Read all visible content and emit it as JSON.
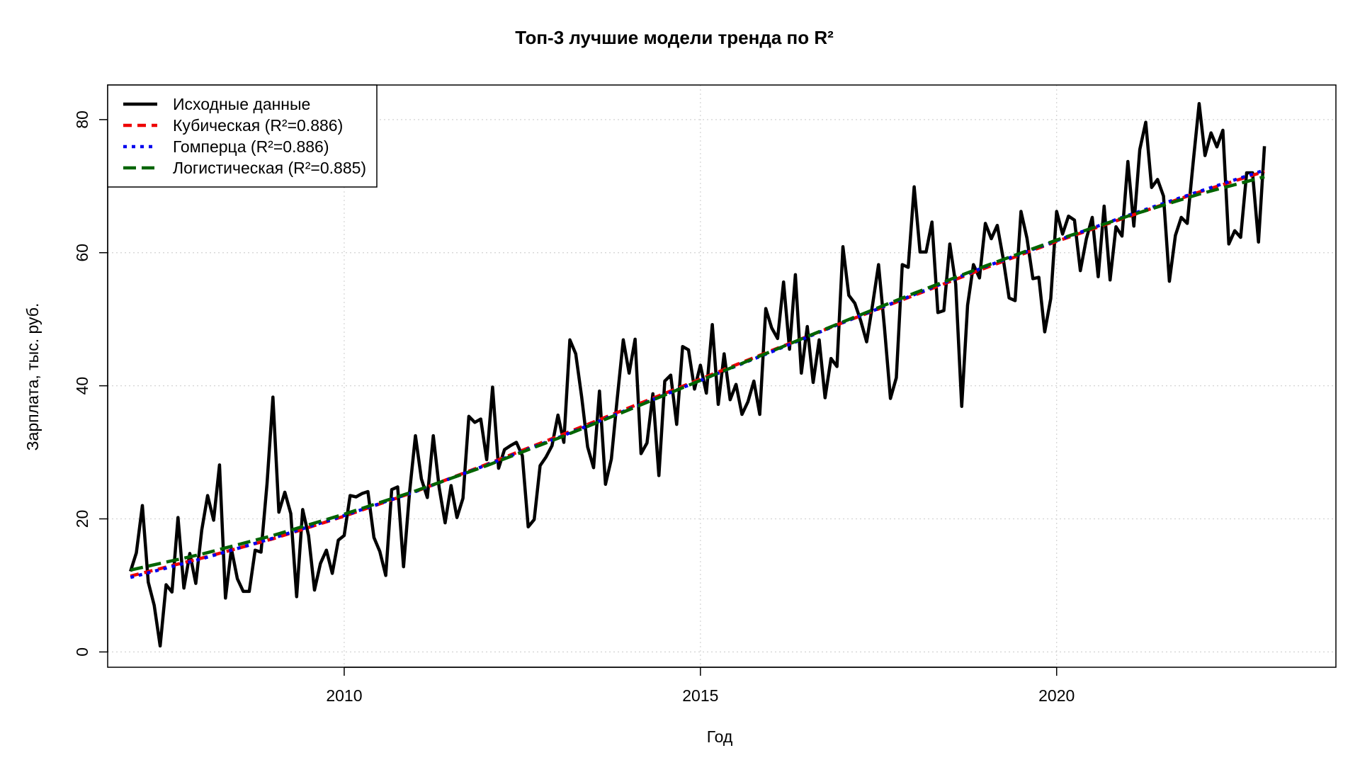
{
  "chart_data": {
    "type": "line",
    "title": "Топ-3 лучшие модели тренда по R²",
    "xlabel": "Год",
    "ylabel": "Зарплата, тыс. руб.",
    "xlim": [
      2006.68,
      2023.92
    ],
    "ylim": [
      -2.3,
      85.2
    ],
    "xticks": [
      2010,
      2015,
      2020
    ],
    "yticks": [
      0,
      20,
      40,
      60,
      80
    ],
    "grid": true,
    "legend_position": "top-left",
    "series": [
      {
        "name": "Исходные данные",
        "color": "#000000",
        "dash": "solid",
        "x": [
          2007.0,
          2007.083,
          2007.167,
          2007.25,
          2007.333,
          2007.417,
          2007.5,
          2007.583,
          2007.667,
          2007.75,
          2007.833,
          2007.917,
          2008.0,
          2008.083,
          2008.167,
          2008.25,
          2008.333,
          2008.417,
          2008.5,
          2008.583,
          2008.667,
          2008.75,
          2008.833,
          2008.917,
          2009.0,
          2009.083,
          2009.167,
          2009.25,
          2009.333,
          2009.417,
          2009.5,
          2009.583,
          2009.667,
          2009.75,
          2009.833,
          2009.917,
          2010.0,
          2010.083,
          2010.167,
          2010.25,
          2010.333,
          2010.417,
          2010.5,
          2010.583,
          2010.667,
          2010.75,
          2010.833,
          2010.917,
          2011.0,
          2011.083,
          2011.167,
          2011.25,
          2011.333,
          2011.417,
          2011.5,
          2011.583,
          2011.667,
          2011.75,
          2011.833,
          2011.917,
          2012.0,
          2012.083,
          2012.167,
          2012.25,
          2012.333,
          2012.417,
          2012.5,
          2012.583,
          2012.667,
          2012.75,
          2012.833,
          2012.917,
          2013.0,
          2013.083,
          2013.167,
          2013.25,
          2013.333,
          2013.417,
          2013.5,
          2013.583,
          2013.667,
          2013.75,
          2013.833,
          2013.917,
          2014.0,
          2014.083,
          2014.167,
          2014.25,
          2014.333,
          2014.417,
          2014.5,
          2014.583,
          2014.667,
          2014.75,
          2014.833,
          2014.917,
          2015.0,
          2015.083,
          2015.167,
          2015.25,
          2015.333,
          2015.417,
          2015.5,
          2015.583,
          2015.667,
          2015.75,
          2015.833,
          2015.917,
          2016.0,
          2016.083,
          2016.167,
          2016.25,
          2016.333,
          2016.417,
          2016.5,
          2016.583,
          2016.667,
          2016.75,
          2016.833,
          2016.917,
          2017.0,
          2017.083,
          2017.167,
          2017.25,
          2017.333,
          2017.417,
          2017.5,
          2017.583,
          2017.667,
          2017.75,
          2017.833,
          2017.917,
          2018.0,
          2018.083,
          2018.167,
          2018.25,
          2018.333,
          2018.417,
          2018.5,
          2018.583,
          2018.667,
          2018.75,
          2018.833,
          2018.917,
          2019.0,
          2019.083,
          2019.167,
          2019.25,
          2019.333,
          2019.417,
          2019.5,
          2019.583,
          2019.667,
          2019.75,
          2019.833,
          2019.917,
          2020.0,
          2020.083,
          2020.167,
          2020.25,
          2020.333,
          2020.417,
          2020.5,
          2020.583,
          2020.667,
          2020.75,
          2020.833,
          2020.917,
          2021.0,
          2021.083,
          2021.167,
          2021.25,
          2021.333,
          2021.417,
          2021.5,
          2021.583,
          2021.667,
          2021.75,
          2021.833,
          2021.917,
          2022.0,
          2022.083,
          2022.167,
          2022.25,
          2022.333,
          2022.417,
          2022.5,
          2022.583,
          2022.667,
          2022.75,
          2022.833,
          2022.917
        ],
        "y": [
          12.1,
          14.9,
          22.0,
          10.5,
          7.0,
          0.9,
          10.1,
          9.0,
          20.2,
          9.6,
          14.8,
          10.3,
          18.3,
          23.5,
          19.8,
          28.1,
          8.1,
          15.5,
          11.0,
          9.1,
          9.1,
          15.3,
          15.0,
          25.3,
          38.3,
          21.0,
          24.0,
          20.8,
          8.3,
          21.4,
          17.5,
          9.3,
          13.3,
          15.3,
          11.8,
          16.8,
          17.5,
          23.5,
          23.3,
          23.8,
          24.1,
          17.2,
          15.1,
          11.5,
          24.4,
          24.8,
          12.8,
          24.0,
          32.5,
          26.0,
          23.2,
          32.5,
          24.7,
          19.4,
          25.0,
          20.2,
          23.1,
          35.4,
          34.5,
          35.0,
          28.9,
          39.8,
          27.6,
          30.4,
          31.0,
          31.5,
          29.5,
          18.8,
          19.9,
          28.0,
          29.3,
          31.0,
          35.6,
          31.5,
          46.9,
          44.8,
          38.3,
          30.8,
          27.7,
          39.2,
          25.2,
          29.0,
          38.1,
          46.9,
          41.9,
          47.0,
          29.8,
          31.4,
          38.8,
          26.5,
          40.7,
          41.6,
          34.2,
          45.9,
          45.4,
          39.5,
          43.1,
          38.9,
          49.2,
          37.2,
          44.8,
          37.9,
          40.2,
          35.7,
          37.6,
          40.7,
          35.7,
          51.6,
          48.7,
          47.1,
          55.6,
          45.5,
          56.7,
          41.9,
          48.9,
          40.5,
          46.9,
          38.2,
          44.1,
          42.9,
          60.9,
          53.6,
          52.4,
          49.8,
          46.6,
          52.2,
          58.2,
          48.8,
          38.1,
          41.2,
          58.2,
          57.8,
          69.9,
          60.1,
          60.1,
          64.6,
          51.0,
          51.3,
          61.3,
          55.3,
          36.9,
          52.1,
          58.2,
          56.2,
          64.4,
          62.1,
          64.1,
          59.1,
          53.2,
          52.8,
          66.2,
          62.2,
          56.1,
          56.3,
          48.1,
          53.1,
          66.2,
          62.8,
          65.5,
          64.9,
          57.3,
          62.1,
          65.3,
          56.4,
          67.0,
          55.9,
          63.9,
          62.5,
          73.7,
          64.0,
          75.5,
          79.6,
          69.8,
          71.0,
          68.5,
          55.7,
          62.6,
          65.3,
          64.4,
          73.6,
          82.4,
          74.6,
          78.0,
          75.9,
          78.4,
          61.3,
          63.3,
          62.3,
          72.0,
          72.0,
          61.6,
          76.0
        ]
      },
      {
        "name": "Кубическая (R²=0.886)",
        "color": "#ee0000",
        "dash": "dashed",
        "x": [
          2007.0,
          2008.0,
          2009.0,
          2010.0,
          2011.0,
          2012.0,
          2013.0,
          2014.0,
          2015.0,
          2016.0,
          2017.0,
          2018.0,
          2019.0,
          2020.0,
          2021.0,
          2022.0,
          2022.917
        ],
        "y": [
          11.4,
          14.1,
          17.0,
          20.4,
          24.1,
          28.2,
          32.4,
          36.7,
          41.0,
          45.3,
          49.5,
          53.6,
          57.7,
          61.7,
          65.4,
          69.1,
          72.2
        ]
      },
      {
        "name": "Гомперца (R²=0.886)",
        "color": "#0000ee",
        "dash": "dotted",
        "x": [
          2007.0,
          2008.0,
          2009.0,
          2010.0,
          2011.0,
          2012.0,
          2013.0,
          2014.0,
          2015.0,
          2016.0,
          2017.0,
          2018.0,
          2019.0,
          2020.0,
          2021.0,
          2022.0,
          2022.917
        ],
        "y": [
          11.2,
          14.0,
          17.1,
          20.5,
          24.1,
          28.1,
          32.2,
          36.5,
          40.8,
          45.1,
          49.5,
          53.7,
          57.9,
          61.8,
          65.6,
          69.2,
          72.4
        ]
      },
      {
        "name": "Логистическая (R²=0.885)",
        "color": "#006400",
        "dash": "longdash",
        "x": [
          2007.0,
          2008.0,
          2009.0,
          2010.0,
          2011.0,
          2012.0,
          2013.0,
          2014.0,
          2015.0,
          2016.0,
          2017.0,
          2018.0,
          2019.0,
          2020.0,
          2021.0,
          2022.0,
          2022.917
        ],
        "y": [
          12.3,
          14.7,
          17.5,
          20.7,
          24.2,
          28.0,
          32.1,
          36.4,
          40.8,
          45.2,
          49.6,
          53.9,
          58.0,
          61.9,
          65.5,
          68.8,
          71.4
        ]
      }
    ]
  }
}
